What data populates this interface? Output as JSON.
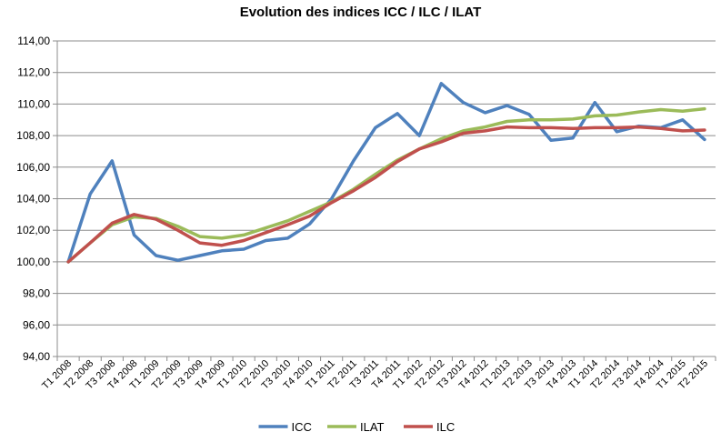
{
  "chart_data": {
    "type": "line",
    "title": "Evolution des indices ICC / ILC / ILAT",
    "xlabel": "",
    "ylabel": "",
    "ylim": [
      94,
      114
    ],
    "ytick_step": 2,
    "ytick_labels": [
      "94,00",
      "96,00",
      "98,00",
      "100,00",
      "102,00",
      "104,00",
      "106,00",
      "108,00",
      "110,00",
      "112,00",
      "114,00"
    ],
    "grid": true,
    "legend": "bottom",
    "categories": [
      "T1 2008",
      "T2 2008",
      "T3 2008",
      "T4 2008",
      "T1 2009",
      "T2 2009",
      "T3 2009",
      "T4 2009",
      "T1 2010",
      "T2 2010",
      "T3 2010",
      "T4 2010",
      "T1 2011",
      "T2 2011",
      "T3 2011",
      "T4 2011",
      "T1 2012",
      "T2 2012",
      "T3 2012",
      "T4 2012",
      "T1 2013",
      "T2 2013",
      "T3 2013",
      "T4 2013",
      "T1 2014",
      "T2 2014",
      "T3 2014",
      "T4 2014",
      "T1 2015",
      "T2 2015"
    ],
    "series": [
      {
        "name": "ICC",
        "color": "#4f81bd",
        "values": [
          100.0,
          104.3,
          106.4,
          101.7,
          100.4,
          100.1,
          100.4,
          100.7,
          100.8,
          101.35,
          101.5,
          102.4,
          104.0,
          106.4,
          108.5,
          109.4,
          108.0,
          111.3,
          110.1,
          109.45,
          109.9,
          109.35,
          107.7,
          107.85,
          110.1,
          108.25,
          108.6,
          108.5,
          109.0,
          107.75
        ]
      },
      {
        "name": "ILAT",
        "color": "#9bbb59",
        "values": [
          100.0,
          101.2,
          102.35,
          102.85,
          102.75,
          102.25,
          101.6,
          101.5,
          101.7,
          102.15,
          102.6,
          103.2,
          103.8,
          104.6,
          105.55,
          106.45,
          107.15,
          107.8,
          108.3,
          108.55,
          108.9,
          109.0,
          109.0,
          109.05,
          109.25,
          109.3,
          109.5,
          109.65,
          109.55,
          109.7
        ]
      },
      {
        "name": "ILC",
        "color": "#c0504d",
        "values": [
          100.0,
          101.2,
          102.45,
          103.0,
          102.7,
          102.0,
          101.2,
          101.05,
          101.35,
          101.85,
          102.35,
          102.9,
          103.75,
          104.5,
          105.35,
          106.35,
          107.15,
          107.6,
          108.15,
          108.3,
          108.55,
          108.5,
          108.5,
          108.45,
          108.5,
          108.5,
          108.55,
          108.45,
          108.3,
          108.35
        ]
      }
    ]
  }
}
